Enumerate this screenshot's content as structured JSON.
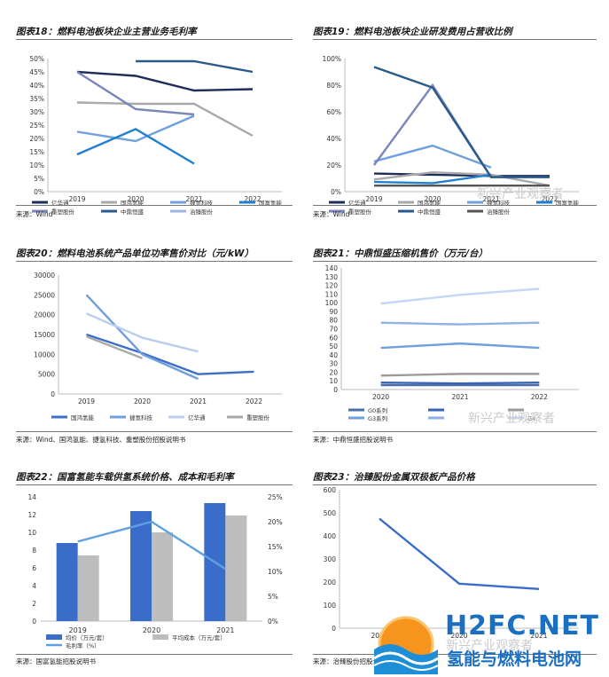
{
  "header_text": "",
  "charts": [
    {
      "id": "c18",
      "title": "图表18：燃料电池板块企业主营业务毛利率",
      "source": "来源：Wind",
      "chart_data": {
        "type": "line",
        "categories": [
          "2019",
          "2020",
          "2021",
          "2022"
        ],
        "yticks": [
          "0%",
          "5%",
          "10%",
          "15%",
          "20%",
          "25%",
          "30%",
          "35%",
          "40%",
          "45%",
          "50%"
        ],
        "ylim": [
          0,
          50
        ],
        "series": [
          {
            "name": "亿华通",
            "color": "#1f2d5c",
            "values": [
              45,
              43.5,
              38,
              38.5
            ]
          },
          {
            "name": "国鸿氢能",
            "color": "#a9a9a9",
            "values": [
              33.5,
              33,
              33,
              21
            ]
          },
          {
            "name": "捷氢科技",
            "color": "#6f9fdc",
            "values": [
              22.5,
              19,
              28.5,
              null
            ]
          },
          {
            "name": "国富氢能",
            "color": "#1f7fd0",
            "values": [
              14,
              23.5,
              10.5,
              null
            ]
          },
          {
            "name": "重塑股份",
            "color": "#7a86b8",
            "values": [
              45,
              31,
              29,
              null
            ]
          },
          {
            "name": "中鼎恒盛",
            "color": "#2a5a8c",
            "values": [
              null,
              49,
              49,
              45
            ]
          },
          {
            "name": "治臻股份",
            "color": "#9fb4df",
            "values": [
              null,
              null,
              null,
              null
            ]
          }
        ]
      }
    },
    {
      "id": "c19",
      "title": "图表19：燃料电池板块企业研发费用占营收比例",
      "source": "来源：Wind",
      "chart_data": {
        "type": "line",
        "categories": [
          "2019",
          "2020",
          "2021",
          "2022"
        ],
        "yticks": [
          "0%",
          "20%",
          "40%",
          "60%",
          "80%",
          "100%"
        ],
        "ylim": [
          0,
          110
        ],
        "series": [
          {
            "name": "亿华通",
            "color": "#1f2d5c",
            "values": [
              15,
              14,
              13,
              13
            ]
          },
          {
            "name": "国鸿氢能",
            "color": "#a9a9a9",
            "values": [
              10,
              16,
              14,
              5
            ]
          },
          {
            "name": "捷氢科技",
            "color": "#6f9fdc",
            "values": [
              25,
              38,
              20,
              null
            ]
          },
          {
            "name": "国富氢能",
            "color": "#1f7fd0",
            "values": [
              8,
              7,
              14,
              null
            ]
          },
          {
            "name": "重塑股份",
            "color": "#7a86b8",
            "values": [
              22,
              88,
              12,
              null
            ]
          },
          {
            "name": "中鼎恒盛",
            "color": "#2a5a8c",
            "values": [
              103,
              86,
              12,
              12
            ]
          },
          {
            "name": "治臻股份",
            "color": "#555555",
            "values": [
              5,
              5,
              5,
              5
            ]
          }
        ]
      }
    },
    {
      "id": "c20",
      "title": "图表20：燃料电池系统产品单位功率售价对比（元/kW）",
      "source": "来源：Wind、国鸿氢能、捷氢科技、重塑股份招股说明书",
      "chart_data": {
        "type": "line",
        "categories": [
          "2019",
          "2020",
          "2021",
          "2022"
        ],
        "yticks": [
          "0",
          "5000",
          "10000",
          "15000",
          "20000",
          "25000",
          "30000"
        ],
        "ylim": [
          0,
          30000
        ],
        "series": [
          {
            "name": "国鸿氢能",
            "color": "#3d6fc9",
            "values": [
              15000,
              10300,
              5000,
              5600
            ]
          },
          {
            "name": "捷氢科技",
            "color": "#6f9fdc",
            "values": [
              25000,
              10000,
              3800,
              null
            ]
          },
          {
            "name": "亿华通",
            "color": "#b9cdef",
            "values": [
              20300,
              14200,
              10700,
              null
            ]
          },
          {
            "name": "重塑股份",
            "color": "#a9a9a9",
            "values": [
              14500,
              9000,
              null,
              null
            ]
          }
        ]
      }
    },
    {
      "id": "c21",
      "title": "图表21：中鼎恒盛压缩机售价（万元/台）",
      "source": "来源：中鼎恒盛招股说明书",
      "chart_data": {
        "type": "line",
        "categories": [
          "2020",
          "2021",
          "2022"
        ],
        "yticks": [
          "0",
          "10",
          "20",
          "30",
          "40",
          "50",
          "60",
          "70",
          "80",
          "90",
          "100",
          "110",
          "120",
          "130",
          "140"
        ],
        "ylim": [
          0,
          140
        ],
        "series": [
          {
            "name": "G0系列",
            "color": "#4a6fa8",
            "values": [
              5,
              5,
              5
            ]
          },
          {
            "name": "",
            "color": "#3a63b5",
            "values": [
              8,
              7,
              8
            ]
          },
          {
            "name": "",
            "color": "#9a9a9a",
            "values": [
              16,
              18,
              18
            ]
          },
          {
            "name": "G3系列",
            "color": "#6f9fdc",
            "values": [
              48,
              53,
              48
            ]
          },
          {
            "name": "",
            "color": "#8fb0e6",
            "values": [
              77,
              75,
              77
            ]
          },
          {
            "name": "G4",
            "color": "#c5d7f4",
            "values": [
              99,
              109,
              116
            ]
          }
        ]
      }
    },
    {
      "id": "c22",
      "title": "图表22：国富氢能车载供氢系统价格、成本和毛利率",
      "source": "来源：国富氢能招股说明书",
      "chart_data": {
        "type": "bar",
        "categories": [
          "2019",
          "2020",
          "2021"
        ],
        "yticks_left": [
          "0",
          "2",
          "4",
          "6",
          "8",
          "10",
          "12",
          "14"
        ],
        "yticks_right": [
          "0%",
          "5%",
          "10%",
          "15%",
          "20%",
          "25%"
        ],
        "ylim": [
          0,
          14
        ],
        "ylim_right": [
          0,
          25
        ],
        "series": [
          {
            "name": "均价（万元/套）",
            "color": "#3a6cc9",
            "values": [
              8.8,
              12.4,
              13.3
            ]
          },
          {
            "name": "平均成本（万元/套）",
            "color": "#bdbdbd",
            "values": [
              7.4,
              10,
              11.9
            ]
          },
          {
            "name": "毛利率（%）",
            "color": "#5fa0e0",
            "values": [
              16,
              20,
              10.5
            ],
            "axis": "right"
          }
        ]
      }
    },
    {
      "id": "c23",
      "title": "图表23：治臻股份金属双极板产品价格",
      "source": "来源：治臻股份招股说明书",
      "chart_data": {
        "type": "line",
        "categories": [
          "2019",
          "2020",
          "2021"
        ],
        "yticks": [
          "0",
          "100",
          "200",
          "300",
          "400",
          "500",
          "600"
        ],
        "ylim": [
          0,
          600
        ],
        "series": [
          {
            "name": "",
            "color": "#3a6cc9",
            "values": [
              475,
              193,
              170
            ]
          }
        ]
      }
    }
  ],
  "watermark": "新兴产业观察者",
  "logo": {
    "line1": "H2FC.NET",
    "line2": "氢能与燃料电池网"
  }
}
